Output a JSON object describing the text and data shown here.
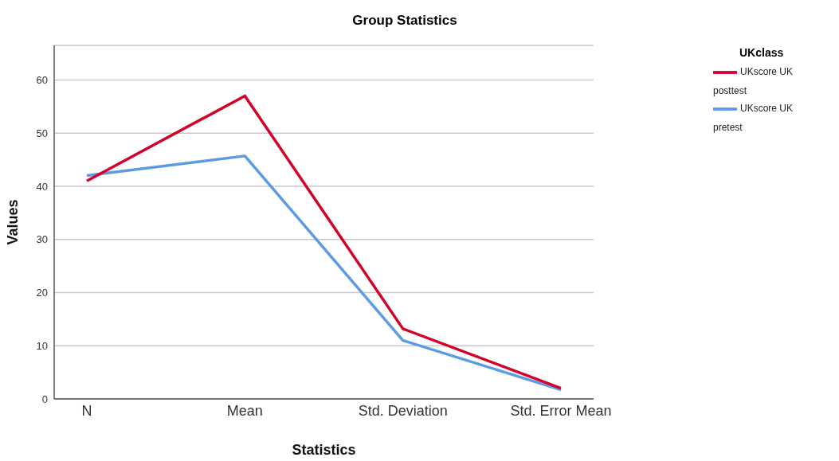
{
  "chart_data": {
    "type": "line",
    "title": "Group Statistics",
    "xlabel": "Statistics",
    "ylabel": "Values",
    "legend_title": "UKclass",
    "categories": [
      "N",
      "Mean",
      "Std. Deviation",
      "Std. Error Mean"
    ],
    "series": [
      {
        "name": "UKscore UK pretest",
        "color": "#5b9be6",
        "values": [
          42,
          45.7,
          11,
          1.7
        ]
      },
      {
        "name": "UKscore UK posttest",
        "color": "#d4002a",
        "values": [
          41,
          57,
          13.2,
          2
        ]
      }
    ],
    "ylim": [
      0,
      66.5
    ],
    "yticks": [
      0,
      10,
      20,
      30,
      40,
      50,
      60
    ],
    "grid": "y",
    "legend": "top right",
    "marker": "none",
    "line_style": "solid"
  }
}
